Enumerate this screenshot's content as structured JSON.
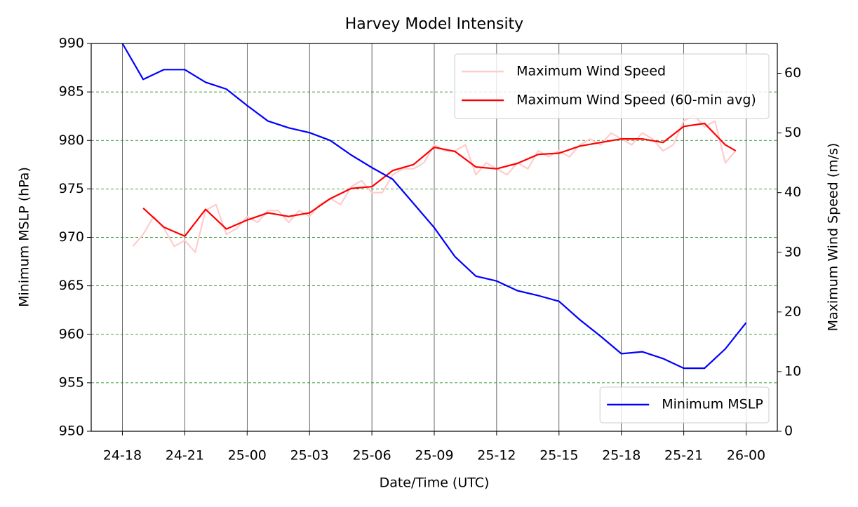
{
  "chart_data": {
    "type": "line",
    "title": "Harvey Model Intensity",
    "x_label": "Date/Time (UTC)",
    "y_label": "Minimum MSLP (hPa)",
    "y2_label": "Maximum Wind Speed (m/s)",
    "xlim": [
      16.5,
      49.5
    ],
    "xticks": [
      {
        "value": 18,
        "label": "24-18"
      },
      {
        "value": 21,
        "label": "24-21"
      },
      {
        "value": 24,
        "label": "25-00"
      },
      {
        "value": 27,
        "label": "25-03"
      },
      {
        "value": 30,
        "label": "25-06"
      },
      {
        "value": 33,
        "label": "25-09"
      },
      {
        "value": 36,
        "label": "25-12"
      },
      {
        "value": 39,
        "label": "25-15"
      },
      {
        "value": 42,
        "label": "25-18"
      },
      {
        "value": 45,
        "label": "25-21"
      },
      {
        "value": 48,
        "label": "26-00"
      }
    ],
    "ylim": [
      950,
      990
    ],
    "yticks": [
      950,
      955,
      960,
      965,
      970,
      975,
      980,
      985,
      990
    ],
    "y2lim": [
      0,
      65
    ],
    "y2ticks": [
      0,
      10,
      20,
      30,
      40,
      50,
      60
    ],
    "grid": true,
    "legend": "upper right",
    "legend_y": "lower right",
    "series": [
      {
        "name": "Maximum Wind Speed",
        "color": "#ffcccc",
        "axis": "y2",
        "x": [
          18.5,
          19,
          19.5,
          20,
          20.5,
          21,
          21.5,
          22,
          22.5,
          23,
          23.5,
          24,
          24.5,
          25,
          25.5,
          26,
          26.5,
          27,
          27.5,
          28,
          28.5,
          29,
          29.5,
          30,
          30.5,
          31,
          31.5,
          32,
          32.5,
          33,
          33.5,
          34,
          34.5,
          35,
          35.5,
          36,
          36.5,
          37,
          37.5,
          38,
          38.5,
          39,
          39.5,
          40,
          40.5,
          41,
          41.5,
          42,
          42.5,
          43,
          43.5,
          44,
          44.5,
          45,
          45.5,
          46,
          46.5,
          47,
          47.5
        ],
        "values": [
          31,
          33,
          36,
          34,
          31,
          32,
          30,
          37,
          38,
          33,
          34,
          36,
          35,
          37,
          37,
          35,
          37,
          36,
          38,
          39,
          38,
          41,
          42,
          40,
          40,
          43,
          44,
          44,
          45,
          48,
          47,
          47,
          48,
          43,
          45,
          44,
          43,
          45,
          44,
          47,
          46,
          47,
          46,
          48,
          49,
          48,
          50,
          49,
          48,
          50,
          49,
          47,
          48,
          52,
          53,
          51,
          52,
          45,
          47
        ]
      },
      {
        "name": "Maximum Wind Speed (60-min avg)",
        "color": "#ff0000",
        "axis": "y2",
        "x": [
          19,
          20,
          21,
          22,
          23,
          24,
          25,
          26,
          27,
          28,
          29,
          30,
          31,
          32,
          33,
          34,
          35,
          36,
          37,
          38,
          39,
          40,
          41,
          42,
          43,
          44,
          45,
          46,
          47,
          47.5
        ],
        "values": [
          37.4,
          34.2,
          32.7,
          37.2,
          33.9,
          35.4,
          36.6,
          36,
          36.6,
          39,
          40.7,
          41,
          43.7,
          44.7,
          47.6,
          46.9,
          44.3,
          44,
          44.9,
          46.4,
          46.6,
          47.8,
          48.4,
          49,
          49,
          48.4,
          51.1,
          51.6,
          48,
          47
        ]
      },
      {
        "name": "Minimum MSLP",
        "color": "#0000ff",
        "axis": "y",
        "x": [
          18,
          19,
          20,
          21,
          22,
          23,
          24,
          25,
          26,
          27,
          28,
          29,
          30,
          31,
          32,
          33,
          34,
          35,
          36,
          37,
          38,
          39,
          40,
          41,
          42,
          43,
          44,
          45,
          46,
          47,
          48
        ],
        "values": [
          990,
          986.3,
          987.3,
          987.3,
          986,
          985.3,
          983.6,
          982,
          981.3,
          980.8,
          980,
          978.5,
          977.2,
          976,
          973.5,
          971,
          968,
          966,
          965.5,
          964.5,
          964,
          963.4,
          961.5,
          959.8,
          958,
          958.2,
          957.5,
          956.5,
          956.5,
          958.5,
          961.2
        ]
      }
    ]
  }
}
